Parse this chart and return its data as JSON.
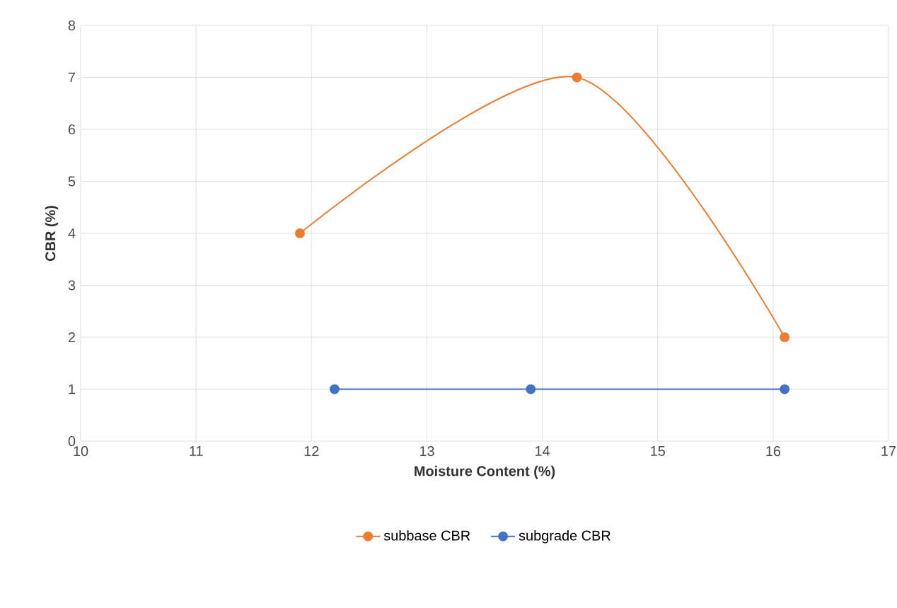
{
  "chart_data": {
    "type": "line",
    "xlabel": "Moisture Content (%)",
    "ylabel": "CBR (%)",
    "xlim": [
      10,
      17
    ],
    "xticks": [
      10,
      11,
      12,
      13,
      14,
      15,
      16,
      17
    ],
    "ylim": [
      0,
      8
    ],
    "yticks": [
      0,
      1,
      2,
      3,
      4,
      5,
      6,
      7,
      8
    ],
    "grid": true,
    "legend": "bottom",
    "marker": "circle",
    "line_style": "solid",
    "series": [
      {
        "name": "subbase CBR",
        "color": "#ed7d31",
        "x": [
          11.9,
          14.3,
          16.1
        ],
        "values": [
          4,
          7,
          2
        ]
      },
      {
        "name": "subgrade CBR",
        "color": "#4472c4",
        "x": [
          12.2,
          13.9,
          16.1
        ],
        "values": [
          1,
          1,
          1
        ]
      }
    ]
  }
}
